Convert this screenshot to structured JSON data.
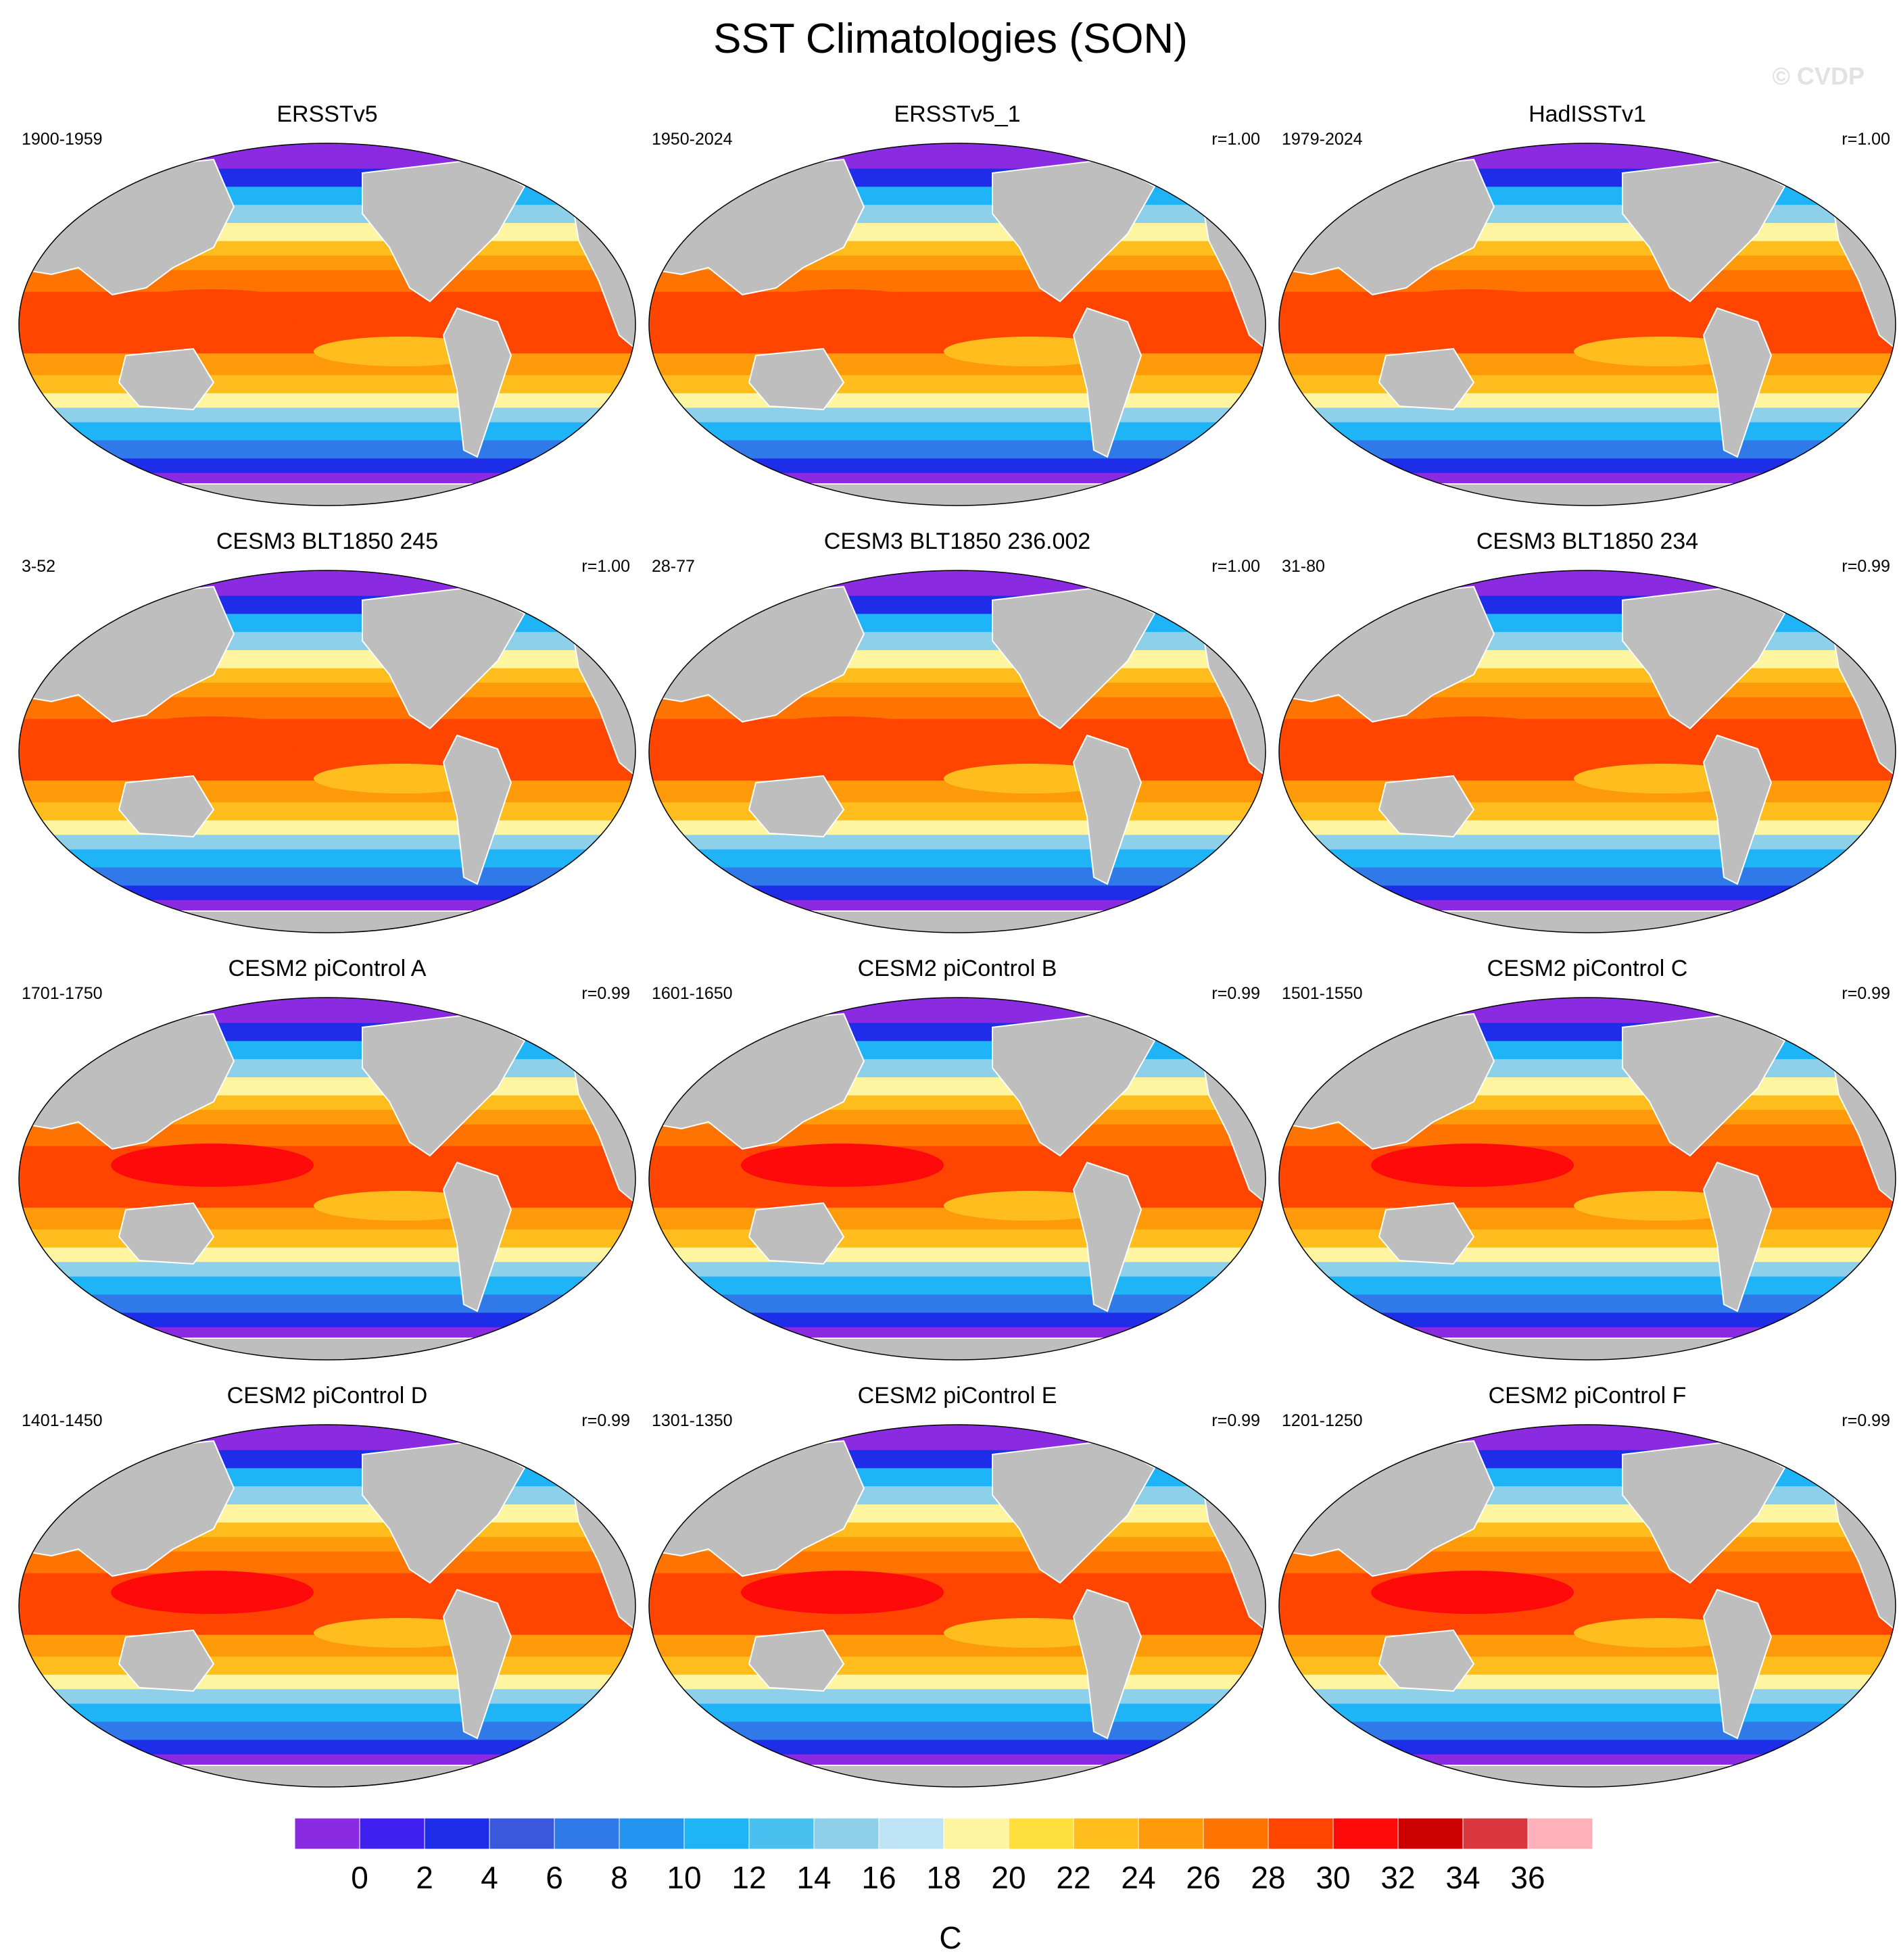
{
  "title": "SST Climatologies (SON)",
  "watermark": "© CVDP",
  "colorbar": {
    "unit": "C",
    "labels": [
      "0",
      "2",
      "4",
      "6",
      "8",
      "10",
      "12",
      "14",
      "16",
      "18",
      "20",
      "22",
      "24",
      "26",
      "28",
      "30",
      "32",
      "34",
      "36"
    ],
    "colors": [
      "#8a2be2",
      "#4020f0",
      "#1e2ee8",
      "#3a58dc",
      "#2f7ae8",
      "#2394f0",
      "#1eb4f5",
      "#4ac0f0",
      "#8ed0ea",
      "#bee3f4",
      "#fff5a0",
      "#ffdf3c",
      "#ffbe1e",
      "#ff9a0a",
      "#ff7400",
      "#ff4500",
      "#ff0a0a",
      "#cc0000",
      "#d9363e",
      "#ffb0b8"
    ]
  },
  "land_color": "#bebebe",
  "panels": [
    {
      "title": "ERSSTv5",
      "period": "1900-1959",
      "corr": ""
    },
    {
      "title": "ERSSTv5_1",
      "period": "1950-2024",
      "corr": "r=1.00"
    },
    {
      "title": "HadISSTv1",
      "period": "1979-2024",
      "corr": "r=1.00"
    },
    {
      "title": "CESM3 BLT1850 245",
      "period": "3-52",
      "corr": "r=1.00"
    },
    {
      "title": "CESM3 BLT1850 236.002",
      "period": "28-77",
      "corr": "r=1.00"
    },
    {
      "title": "CESM3 BLT1850 234",
      "period": "31-80",
      "corr": "r=0.99"
    },
    {
      "title": "CESM2 piControl A",
      "period": "1701-1750",
      "corr": "r=0.99"
    },
    {
      "title": "CESM2 piControl B",
      "period": "1601-1650",
      "corr": "r=0.99"
    },
    {
      "title": "CESM2 piControl C",
      "period": "1501-1550",
      "corr": "r=0.99"
    },
    {
      "title": "CESM2 piControl D",
      "period": "1401-1450",
      "corr": "r=0.99"
    },
    {
      "title": "CESM2 piControl E",
      "period": "1301-1350",
      "corr": "r=0.99"
    },
    {
      "title": "CESM2 piControl F",
      "period": "1201-1250",
      "corr": "r=0.99"
    }
  ]
}
